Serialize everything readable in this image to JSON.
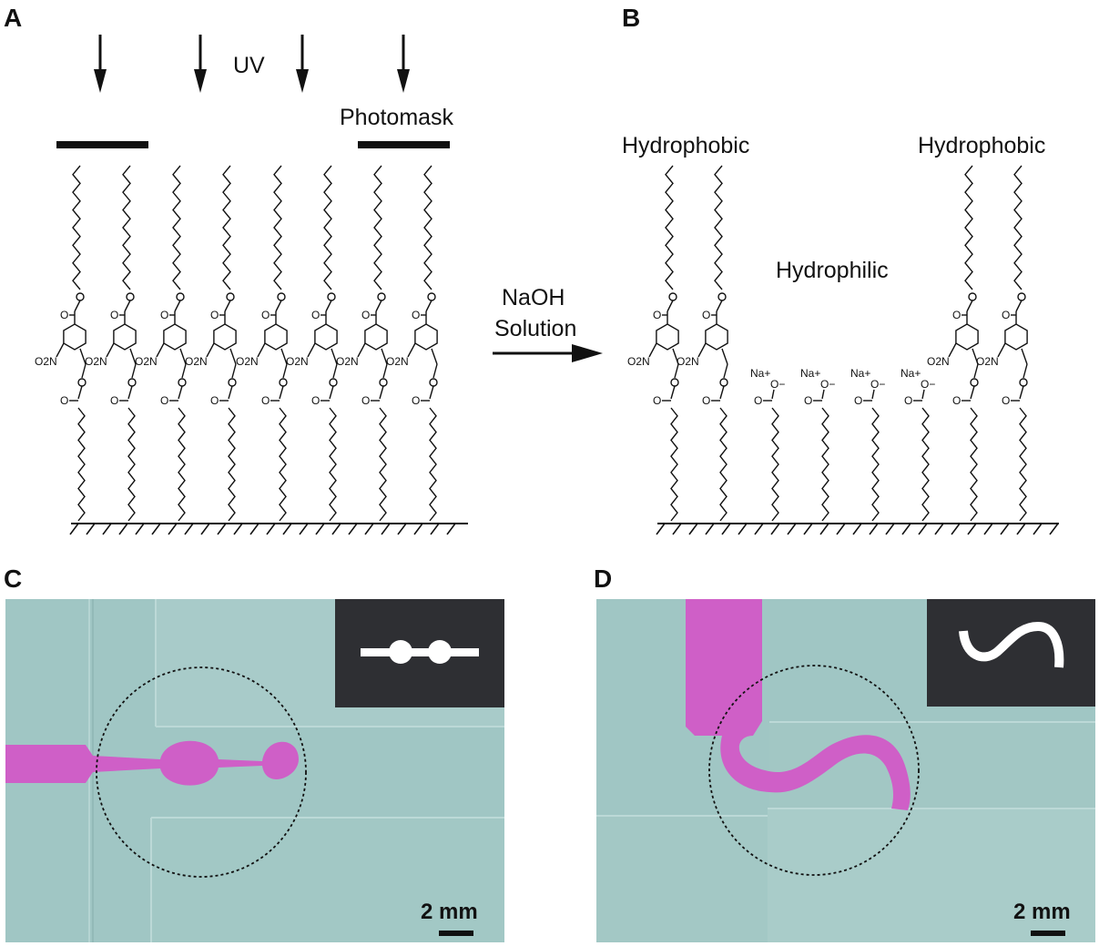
{
  "panels": {
    "a": {
      "letter": "A",
      "uv_label": "UV",
      "photomask_label": "Photomask",
      "nitro_label": "O2N",
      "carbonyl_label": "O"
    },
    "arrow": {
      "line1": "NaOH",
      "line2": "Solution"
    },
    "b": {
      "letter": "B",
      "hydrophobic_left": "Hydrophobic",
      "hydrophobic_right": "Hydrophobic",
      "hydrophilic": "Hydrophilic",
      "sodium_label": "Na+",
      "oxide_label": "O−"
    },
    "c": {
      "letter": "C",
      "scale_label": "2 mm"
    },
    "d": {
      "letter": "D",
      "scale_label": "2 mm"
    }
  },
  "colors": {
    "glass": "#9dc3c1",
    "magenta_fluid": "#cf5fc7",
    "inset_background": "#2e2f33",
    "inset_pattern": "#ffffff"
  }
}
